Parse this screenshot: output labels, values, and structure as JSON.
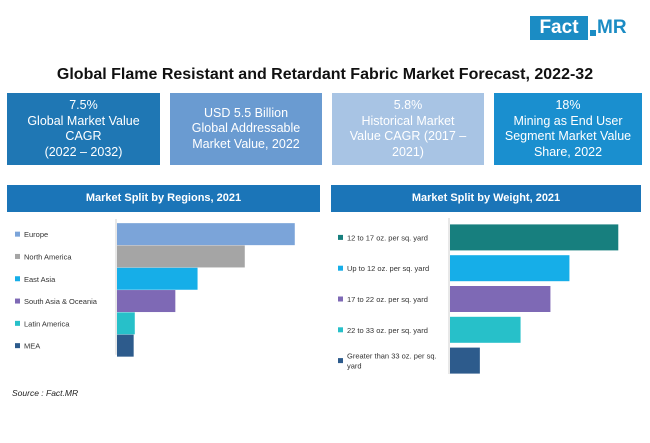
{
  "logo": {
    "part1": "Fact",
    "part2": "MR"
  },
  "title": "Global Flame Resistant and Retardant Fabric Market Forecast, 2022-32",
  "kpis": [
    {
      "lines": [
        "7.5%",
        "Global Market Value",
        "CAGR",
        "(2022 – 2032)"
      ],
      "color": "#1f77b4"
    },
    {
      "lines": [
        "USD 5.5 Billion",
        "Global Addressable",
        "Market Value, 2022"
      ],
      "color": "#6a9bd1"
    },
    {
      "lines": [
        "5.8%",
        "Historical Market",
        "Value CAGR (2017 –",
        "2021)"
      ],
      "color": "#a8c4e4"
    },
    {
      "lines": [
        "18%",
        "Mining as End User",
        "Segment Market Value",
        "Share, 2022"
      ],
      "color": "#1a8fcf"
    }
  ],
  "colors": {
    "header": "#1b75b8"
  },
  "chart_data": [
    {
      "type": "bar",
      "orientation": "horizontal",
      "title": "Market Split by Regions, 2021",
      "categories": [
        "Europe",
        "North America",
        "East Asia",
        "South Asia & Oceania",
        "Latin America",
        "MEA"
      ],
      "values": [
        32,
        23,
        14.5,
        10.5,
        3.2,
        3
      ],
      "colors": [
        "#7ba4d9",
        "#a5a5a5",
        "#16aee8",
        "#7e69b5",
        "#27c0c9",
        "#2d5b8c"
      ],
      "xlim": [
        0,
        36
      ],
      "grid": false,
      "legend": "none"
    },
    {
      "type": "bar",
      "orientation": "horizontal",
      "title": "Market Split by Weight, 2021",
      "categories": [
        "12 to 17 oz. per sq. yard",
        "Up to 12 oz. per sq. yard",
        "17 to 22 oz. per sq. yard",
        "22 to 33 oz. per sq. yard",
        "Greater than 33 oz. per sq. yard"
      ],
      "values": [
        31,
        22,
        18.5,
        13,
        5.5
      ],
      "colors": [
        "#177f7e",
        "#16aee8",
        "#7e69b5",
        "#27c0c9",
        "#2d5b8c"
      ],
      "xlim": [
        0,
        35
      ],
      "grid": false,
      "legend": "none"
    }
  ],
  "source": "Source : Fact.MR"
}
